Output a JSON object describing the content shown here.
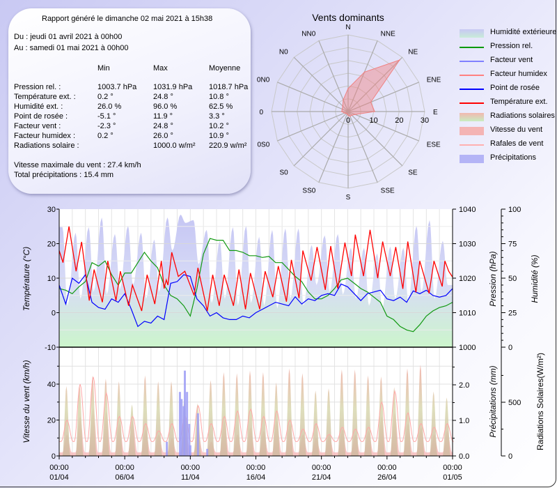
{
  "report": {
    "generated": "Rapport généré le dimanche 02 mai 2021 à 15h38",
    "from": "Du : jeudi 01 avril 2021 à 00h00",
    "to": "Au : samedi 01 mai 2021 à 00h00",
    "columns": [
      "Min",
      "Max",
      "Moyenne"
    ],
    "rows": [
      {
        "label": "Pression rel. :",
        "min": "1003.7 hPa",
        "max": "1031.9 hPa",
        "avg": "1018.7 hPa"
      },
      {
        "label": "Température ext. :",
        "min": "0.2 °",
        "max": "24.8 °",
        "avg": "10.8 °"
      },
      {
        "label": "Humidité ext. :",
        "min": "26.0 %",
        "max": "96.0 %",
        "avg": "62.5 %"
      },
      {
        "label": "Point de rosée :",
        "min": "-5.1 °",
        "max": "11.9 °",
        "avg": "3.3 °"
      },
      {
        "label": "Facteur vent :",
        "min": "-2.3 °",
        "max": "24.8 °",
        "avg": "10.2 °"
      },
      {
        "label": "Facteur humidex :",
        "min": "0.2 °",
        "max": "26.0 °",
        "avg": "10.9 °"
      },
      {
        "label": "Radiations solaire :",
        "min": "",
        "max": "1000.0 w/m²",
        "avg": "220.9 w/m²"
      }
    ],
    "max_wind": "Vitesse maximale du vent : 27.4 km/h",
    "total_rain": "Total précipitations : 15.4 mm"
  },
  "legend": [
    {
      "label": "Humidité extérieure",
      "kind": "fill",
      "colors": [
        "#c8c8f4",
        "#c8ecd8"
      ]
    },
    {
      "label": "Pression rel.",
      "kind": "line",
      "colors": [
        "#009900"
      ]
    },
    {
      "label": "Facteur vent",
      "kind": "line",
      "colors": [
        "#8080ff"
      ]
    },
    {
      "label": "Facteur humidex",
      "kind": "line",
      "colors": [
        "#ff8080"
      ]
    },
    {
      "label": "Point de rosée",
      "kind": "line",
      "colors": [
        "#0000ff"
      ]
    },
    {
      "label": "Température ext.",
      "kind": "line",
      "colors": [
        "#ff0000"
      ]
    },
    {
      "label": "Radiations solaires",
      "kind": "fill",
      "colors": [
        "#f2b8b0",
        "#c8ecc0"
      ]
    },
    {
      "label": "Vitesse du vent",
      "kind": "fill",
      "colors": [
        "#f4b4b4",
        "#f4b4b4"
      ]
    },
    {
      "label": "Rafales de vent",
      "kind": "line",
      "colors": [
        "#ffb0b0"
      ]
    },
    {
      "label": "Précipitations",
      "kind": "fill",
      "colors": [
        "#b4b4f6",
        "#b4b4f6"
      ]
    }
  ],
  "chart_data": [
    {
      "type": "radar",
      "title": "Vents dominants",
      "directions": [
        "N",
        "NNE",
        "NE",
        "ENE",
        "E",
        "ESE",
        "SE",
        "SSE",
        "S",
        "SS0",
        "S0",
        "0S0",
        "0",
        "0N0",
        "N0",
        "NN0"
      ],
      "values": [
        9,
        16.7,
        28.5,
        9.6,
        10.4,
        3,
        2,
        2,
        1.5,
        1,
        1,
        1.5,
        2.5,
        2.5,
        3,
        5
      ],
      "rlim": [
        0,
        30
      ],
      "radial_ticks": [
        "0",
        "10",
        "20",
        "30"
      ],
      "color": "#f08080"
    },
    {
      "type": "line",
      "panel": "top",
      "y_left": {
        "label": "Température (°C)",
        "lim": [
          -10,
          30
        ],
        "ticks": [
          "30",
          "20",
          "10",
          "0",
          "-10"
        ]
      },
      "y_right1": {
        "label": "Pression (hPa)",
        "lim": [
          1000,
          1040
        ],
        "ticks": [
          "1040",
          "1030",
          "1020",
          "1010",
          "1000"
        ]
      },
      "y_right2": {
        "label": "Humidité (%)",
        "lim": [
          0,
          100
        ],
        "ticks": [
          "100",
          "75",
          "50",
          "25",
          "0"
        ]
      },
      "x_12h": [
        "01/04 00:00",
        "01/04 12:00",
        "02/04 00:00",
        "02/04 12:00",
        "03/04 00:00",
        "03/04 12:00",
        "04/04 00:00",
        "04/04 12:00",
        "05/04 00:00",
        "05/04 12:00",
        "06/04 00:00",
        "06/04 12:00",
        "07/04 00:00",
        "07/04 12:00",
        "08/04 00:00",
        "08/04 12:00",
        "09/04 00:00",
        "09/04 12:00",
        "10/04 00:00",
        "10/04 12:00",
        "11/04 00:00",
        "11/04 12:00",
        "12/04 00:00",
        "12/04 12:00",
        "13/04 00:00",
        "13/04 12:00",
        "14/04 00:00",
        "14/04 12:00",
        "15/04 00:00",
        "15/04 12:00",
        "16/04 00:00",
        "16/04 12:00",
        "17/04 00:00",
        "17/04 12:00",
        "18/04 00:00",
        "18/04 12:00",
        "19/04 00:00",
        "19/04 12:00",
        "20/04 00:00",
        "20/04 12:00",
        "21/04 00:00",
        "21/04 12:00",
        "22/04 00:00",
        "22/04 12:00",
        "23/04 00:00",
        "23/04 12:00",
        "24/04 00:00",
        "24/04 12:00",
        "25/04 00:00",
        "25/04 12:00",
        "26/04 00:00",
        "26/04 12:00",
        "27/04 00:00",
        "27/04 12:00",
        "28/04 00:00",
        "28/04 12:00",
        "29/04 00:00",
        "29/04 12:00",
        "30/04 00:00",
        "30/04 12:00",
        "01/05 00:00"
      ],
      "pressure_hpa": [
        1017,
        1016.5,
        1015.5,
        1017.5,
        1019,
        1024.5,
        1023.5,
        1025,
        1021,
        1018,
        1021.5,
        1021.5,
        1024.5,
        1027.5,
        1025,
        1023,
        1018,
        1015,
        1014,
        1012,
        1009,
        1017,
        1027,
        1031.5,
        1031,
        1031,
        1028,
        1028,
        1027.5,
        1026.5,
        1026.5,
        1026,
        1026.3,
        1024.5,
        1024.5,
        1022.5,
        1020.5,
        1019,
        1016,
        1014,
        1014,
        1015,
        1017,
        1019.5,
        1020,
        1018.5,
        1017,
        1016,
        1014.5,
        1013,
        1009,
        1008,
        1006,
        1005,
        1004.5,
        1006.5,
        1009,
        1010.5,
        1011.5,
        1012,
        1013
      ],
      "dew_point_c": [
        8,
        2.5,
        10,
        8.5,
        11,
        3,
        1.5,
        1,
        4,
        3,
        5.5,
        1,
        -4,
        -2.5,
        -3,
        -1,
        -2,
        8.5,
        9,
        11,
        10.5,
        4,
        2,
        -1,
        0,
        -1.5,
        -2,
        -2,
        -1,
        -1.5,
        0,
        1,
        2,
        3,
        2.5,
        2,
        4.6,
        2.5,
        4,
        3.5,
        5,
        5.5,
        5,
        8.3,
        7.5,
        5.5,
        3.5,
        5.5,
        6,
        6.5,
        4,
        3.5,
        4.5,
        3,
        6.3,
        5.5,
        6.5,
        5,
        4.5,
        5,
        7
      ],
      "temperature_c": [
        [
          "01/04 00:00",
          18
        ],
        [
          "01/04 07:00",
          14.5
        ],
        [
          "01/04 18:00",
          25
        ],
        [
          "02/04 07:00",
          12
        ],
        [
          "02/04 17:00",
          20.5
        ],
        [
          "03/04 07:00",
          3.5
        ],
        [
          "03/04 16:00",
          12.5
        ],
        [
          "04/04 07:00",
          3
        ],
        [
          "04/04 17:00",
          15
        ],
        [
          "05/04 08:00",
          3.5
        ],
        [
          "05/04 16:00",
          12
        ],
        [
          "06/04 07:00",
          2
        ],
        [
          "06/04 14:00",
          8
        ],
        [
          "07/04 07:00",
          0.5
        ],
        [
          "07/04 17:00",
          11
        ],
        [
          "08/04 07:00",
          2.5
        ],
        [
          "08/04 19:00",
          15
        ],
        [
          "09/04 00:00",
          7
        ],
        [
          "09/04 04:00",
          9.5
        ],
        [
          "09/04 07:00",
          8
        ],
        [
          "09/04 14:00",
          17.5
        ],
        [
          "10/04 02:00",
          10.5
        ],
        [
          "10/04 14:00",
          12
        ],
        [
          "11/04 07:00",
          5
        ],
        [
          "11/04 14:00",
          13
        ],
        [
          "12/04 07:00",
          0.5
        ],
        [
          "12/04 17:00",
          11
        ],
        [
          "13/04 05:00",
          2
        ],
        [
          "13/04 14:00",
          11
        ],
        [
          "14/04 07:00",
          2
        ],
        [
          "14/04 17:00",
          12.5
        ],
        [
          "15/04 05:00",
          1
        ],
        [
          "15/04 14:00",
          11.5
        ],
        [
          "16/04 07:00",
          1
        ],
        [
          "16/04 17:00",
          12
        ],
        [
          "17/04 07:00",
          4.5
        ],
        [
          "17/04 17:00",
          13.5
        ],
        [
          "18/04 08:00",
          3.2
        ],
        [
          "18/04 17:00",
          15.3
        ],
        [
          "19/04 07:00",
          4.2
        ],
        [
          "19/04 14:00",
          18
        ],
        [
          "20/04 05:00",
          9.3
        ],
        [
          "20/04 16:00",
          19
        ],
        [
          "21/04 07:00",
          6.6
        ],
        [
          "21/04 17:00",
          19.3
        ],
        [
          "22/04 06:00",
          7
        ],
        [
          "22/04 19:00",
          20.3
        ],
        [
          "23/04 07:00",
          10.6
        ],
        [
          "23/04 14:00",
          22.6
        ],
        [
          "24/04 05:00",
          10.6
        ],
        [
          "24/04 17:00",
          24
        ],
        [
          "25/04 07:00",
          10
        ],
        [
          "25/04 16:00",
          20.6
        ],
        [
          "26/04 06:00",
          10.6
        ],
        [
          "26/04 16:00",
          19
        ],
        [
          "27/04 05:00",
          6.9
        ],
        [
          "27/04 14:00",
          20.6
        ],
        [
          "28/04 05:00",
          5.9
        ],
        [
          "28/04 12:00",
          15
        ],
        [
          "29/04 05:00",
          5.6
        ],
        [
          "29/04 14:00",
          15
        ],
        [
          "30/04 05:00",
          7.6
        ],
        [
          "30/04 10:00",
          15
        ],
        [
          "30/04 17:00",
          12
        ],
        [
          "01/05 00:00",
          10.3
        ]
      ],
      "humidity_daily_max_pct": [
        87,
        83,
        87,
        94,
        82,
        88,
        83,
        78,
        94,
        96,
        92,
        85,
        77,
        87,
        88,
        80,
        85,
        86,
        86,
        74,
        81,
        82,
        72,
        72,
        68,
        73,
        72,
        88,
        92,
        77
      ],
      "humidity_daily_min_pct": [
        30,
        35,
        40,
        38,
        42,
        45,
        35,
        40,
        70,
        90,
        60,
        32,
        35,
        30,
        32,
        30,
        28,
        35,
        30,
        45,
        40,
        38,
        35,
        30,
        28,
        35,
        33,
        40,
        35,
        45
      ],
      "x_ticks": [
        [
          "00:00",
          "01/04"
        ],
        [
          "00:00",
          "06/04"
        ],
        [
          "00:00",
          "11/04"
        ],
        [
          "00:00",
          "16/04"
        ],
        [
          "00:00",
          "21/04"
        ],
        [
          "00:00",
          "26/04"
        ],
        [
          "00:00",
          "01/05"
        ]
      ],
      "grid": true
    },
    {
      "type": "area",
      "panel": "bottom",
      "y_left": {
        "label": "Vitesse du vent (km/h)",
        "lim": [
          0,
          60
        ],
        "ticks": [
          "40",
          "20",
          "0"
        ]
      },
      "y_right1": {
        "label": "Précipitations (mm)",
        "lim": [
          0,
          3
        ],
        "ticks": [
          "2.0",
          "1.0",
          "0.0"
        ]
      },
      "y_right2": {
        "label": "Radiations Solaires(W/m²)",
        "lim": [
          0,
          1000
        ],
        "ticks": [
          "500",
          "0"
        ]
      },
      "solar_daily_peak_wm2": [
        650,
        665,
        750,
        720,
        695,
        480,
        750,
        695,
        695,
        525,
        490,
        705,
        780,
        770,
        795,
        780,
        685,
        815,
        770,
        610,
        630,
        805,
        805,
        750,
        740,
        640,
        815,
        850,
        600,
        545
      ],
      "wind_daily_max_kmh": [
        12,
        22,
        27,
        25,
        18,
        20,
        15,
        12,
        10,
        22,
        14,
        8,
        20,
        12,
        16,
        14,
        20,
        18,
        12,
        10,
        12,
        15,
        12,
        14,
        22,
        24,
        18,
        16,
        12,
        14
      ],
      "gust_daily_max_kmh": [
        20,
        40,
        44,
        35,
        22,
        22,
        18,
        14,
        18,
        22,
        28,
        18,
        22,
        25,
        26,
        22,
        25,
        20,
        15,
        18,
        12,
        16,
        15,
        16,
        30,
        36,
        24,
        18,
        16,
        18
      ],
      "precipitation_mm": [
        [
          "09/04 05:00",
          0.4
        ],
        [
          "10/04 05:00",
          1.8
        ],
        [
          "10/04 08:00",
          1.6
        ],
        [
          "10/04 12:00",
          1.4
        ],
        [
          "10/04 14:00",
          2.4
        ],
        [
          "10/04 18:00",
          1.8
        ],
        [
          "10/04 22:00",
          0.9
        ],
        [
          "11/04 00:00",
          0.3
        ],
        [
          "11/04 14:00",
          1.2
        ],
        [
          "12/04 07:00",
          0.2
        ]
      ],
      "grid": true
    }
  ]
}
